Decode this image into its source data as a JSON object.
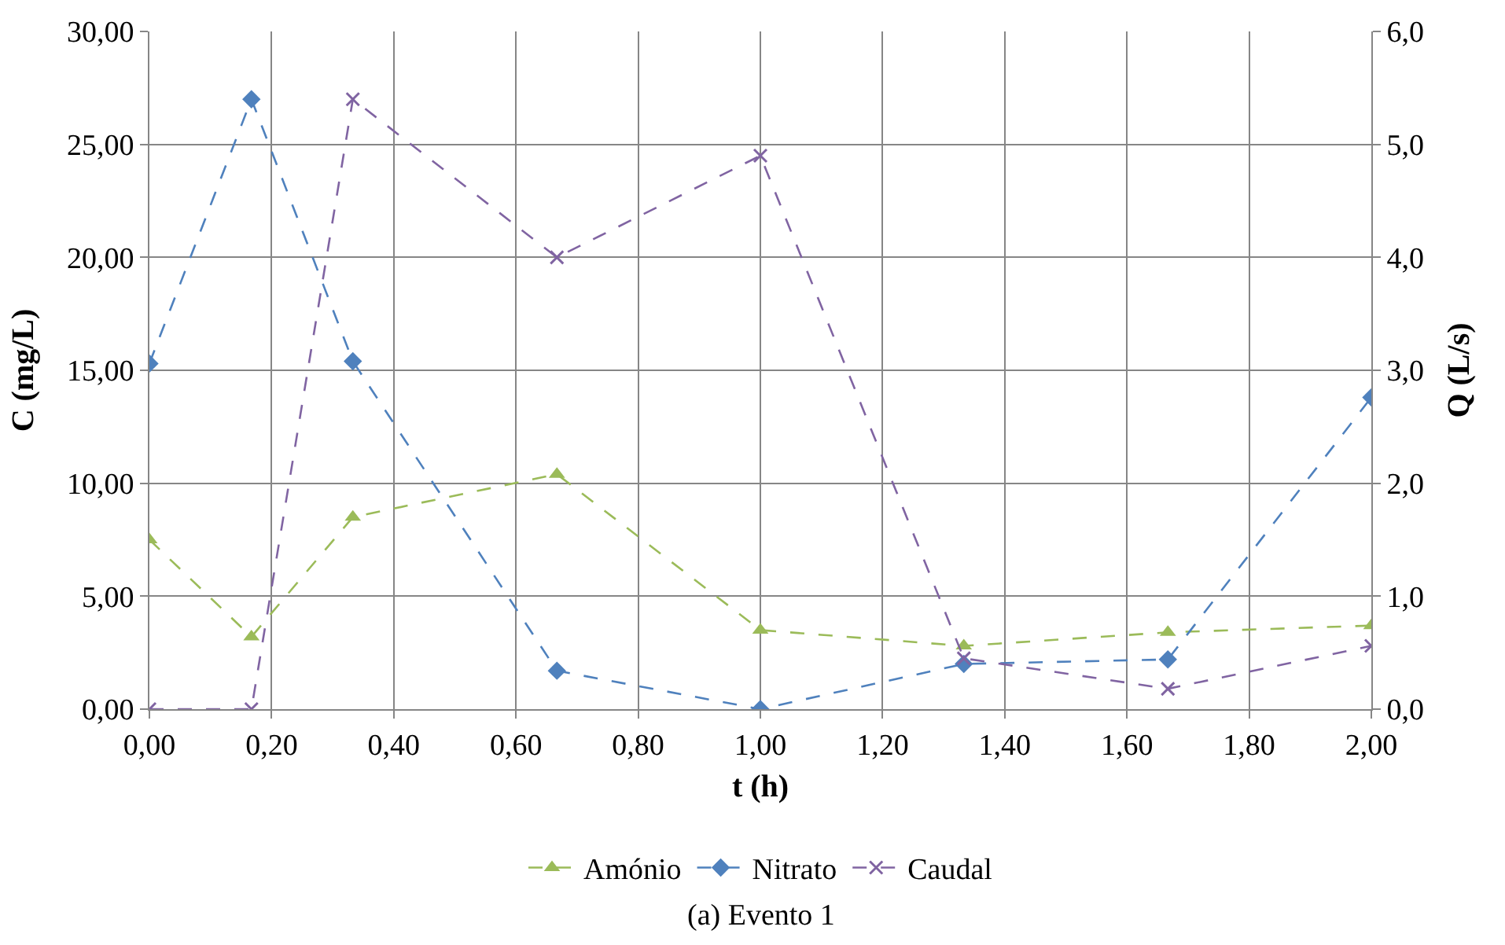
{
  "chart_data": {
    "type": "line",
    "xlabel": "t (h)",
    "ylabel": "C (mg/L)",
    "y2label": "Q (L/s)",
    "annotations": [
      "(a) Evento 1"
    ],
    "x": [
      0,
      0.167,
      0.333,
      0.667,
      1.0,
      1.333,
      1.667,
      2.0
    ],
    "series": [
      {
        "name": "Amónio",
        "color": "#9bbb59",
        "marker": "triangle",
        "values": [
          7.5,
          3.2,
          8.5,
          10.4,
          3.5,
          2.8,
          3.4,
          3.7
        ]
      },
      {
        "name": "Nitrato",
        "color": "#4f81bd",
        "marker": "diamond",
        "values": [
          15.3,
          27.0,
          15.4,
          1.7,
          0.0,
          2.0,
          2.2,
          13.8
        ]
      },
      {
        "name": "Caudal",
        "color": "#8064a2",
        "marker": "cross",
        "axis": "y2",
        "values": [
          0.0,
          0.0,
          5.4,
          4.0,
          4.9,
          0.45,
          0.18,
          0.56
        ]
      }
    ],
    "xlim": [
      0,
      2
    ],
    "xticks": [
      {
        "value": 0,
        "label": "0,00"
      },
      {
        "value": 0.2,
        "label": "0,20"
      },
      {
        "value": 0.4,
        "label": "0,40"
      },
      {
        "value": 0.6,
        "label": "0,60"
      },
      {
        "value": 0.8,
        "label": "0,80"
      },
      {
        "value": 1.0,
        "label": "1,00"
      },
      {
        "value": 1.2,
        "label": "1,20"
      },
      {
        "value": 1.4,
        "label": "1,40"
      },
      {
        "value": 1.6,
        "label": "1,60"
      },
      {
        "value": 1.8,
        "label": "1,80"
      },
      {
        "value": 2.0,
        "label": "2,00"
      }
    ],
    "ylim": [
      0,
      30
    ],
    "yticks": [
      {
        "value": 0,
        "label": "0,00"
      },
      {
        "value": 5,
        "label": "5,00"
      },
      {
        "value": 10,
        "label": "10,00"
      },
      {
        "value": 15,
        "label": "15,00"
      },
      {
        "value": 20,
        "label": "20,00"
      },
      {
        "value": 25,
        "label": "25,00"
      },
      {
        "value": 30,
        "label": "30,00"
      }
    ],
    "y2lim": [
      0,
      6
    ],
    "y2ticks": [
      {
        "value": 0,
        "label": "0,0"
      },
      {
        "value": 1,
        "label": "1,0"
      },
      {
        "value": 2,
        "label": "2,0"
      },
      {
        "value": 3,
        "label": "3,0"
      },
      {
        "value": 4,
        "label": "4,0"
      },
      {
        "value": 5,
        "label": "5,0"
      },
      {
        "value": 6,
        "label": "6,0"
      }
    ],
    "grid": true,
    "legend": "bottom",
    "line_style": "dashed"
  }
}
